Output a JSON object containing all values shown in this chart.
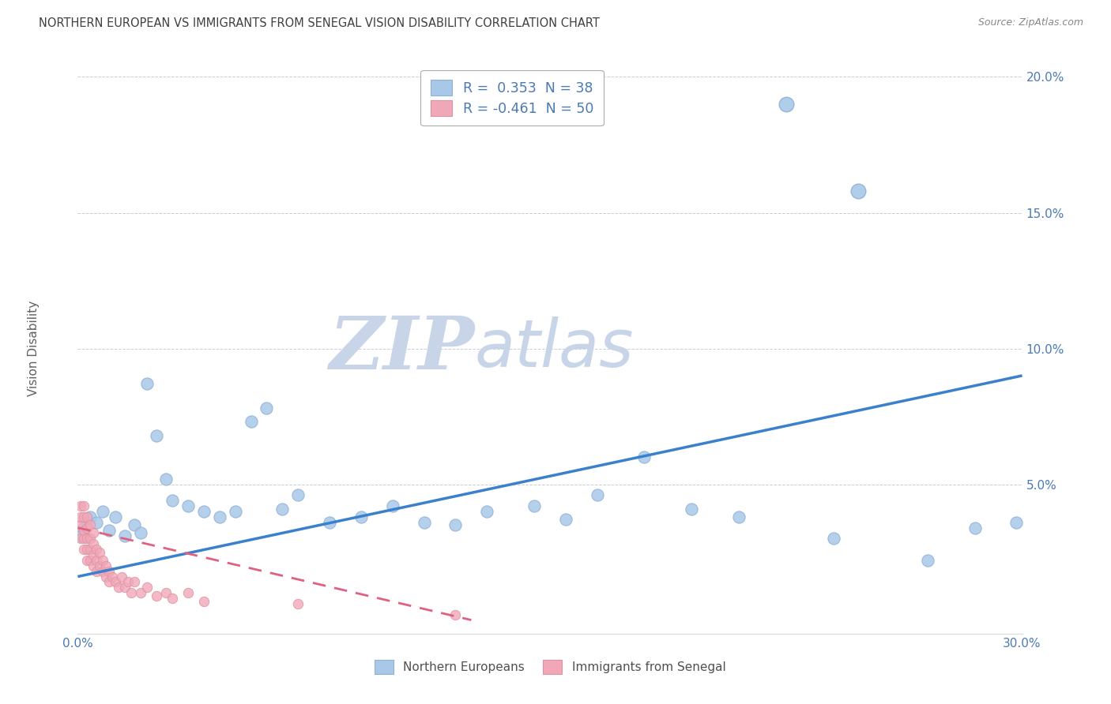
{
  "title": "NORTHERN EUROPEAN VS IMMIGRANTS FROM SENEGAL VISION DISABILITY CORRELATION CHART",
  "source": "Source: ZipAtlas.com",
  "ylabel": "Vision Disability",
  "xlim": [
    0.0,
    0.3
  ],
  "ylim": [
    -0.005,
    0.205
  ],
  "background_color": "#ffffff",
  "grid_color": "#b0b8c8",
  "watermark_zip": "ZIP",
  "watermark_atlas": "atlas",
  "watermark_color_zip": "#c8d4e8",
  "watermark_color_atlas": "#c8d4e8",
  "line_color1": "#3a80cc",
  "line_color2": "#e06080",
  "dot_color1": "#a8c8e8",
  "dot_color2": "#f0a8b8",
  "dot_edge1": "#90b0d8",
  "dot_edge2": "#e090a0",
  "label1": "Northern Europeans",
  "label2": "Immigrants from Senegal",
  "text_color": "#4a7ab5",
  "title_color": "#404040",
  "legend_color1": "#a8c8e8",
  "legend_color2": "#f0a8b8",
  "blue_scatter_x": [
    0.001,
    0.002,
    0.004,
    0.006,
    0.008,
    0.01,
    0.012,
    0.015,
    0.018,
    0.02,
    0.022,
    0.025,
    0.028,
    0.03,
    0.035,
    0.04,
    0.045,
    0.05,
    0.055,
    0.06,
    0.065,
    0.07,
    0.08,
    0.09,
    0.1,
    0.11,
    0.12,
    0.13,
    0.145,
    0.155,
    0.165,
    0.18,
    0.195,
    0.21,
    0.24,
    0.27,
    0.285,
    0.298
  ],
  "blue_scatter_y": [
    0.031,
    0.034,
    0.038,
    0.036,
    0.04,
    0.033,
    0.038,
    0.031,
    0.035,
    0.032,
    0.087,
    0.068,
    0.052,
    0.044,
    0.042,
    0.04,
    0.038,
    0.04,
    0.073,
    0.078,
    0.041,
    0.046,
    0.036,
    0.038,
    0.042,
    0.036,
    0.035,
    0.04,
    0.042,
    0.037,
    0.046,
    0.06,
    0.041,
    0.038,
    0.03,
    0.022,
    0.034,
    0.036
  ],
  "pink_scatter_x": [
    0.001,
    0.001,
    0.001,
    0.001,
    0.002,
    0.002,
    0.002,
    0.002,
    0.002,
    0.003,
    0.003,
    0.003,
    0.003,
    0.003,
    0.004,
    0.004,
    0.004,
    0.004,
    0.005,
    0.005,
    0.005,
    0.005,
    0.006,
    0.006,
    0.006,
    0.007,
    0.007,
    0.008,
    0.008,
    0.009,
    0.009,
    0.01,
    0.01,
    0.011,
    0.012,
    0.013,
    0.014,
    0.015,
    0.016,
    0.017,
    0.018,
    0.02,
    0.022,
    0.025,
    0.028,
    0.03,
    0.035,
    0.04,
    0.07,
    0.12
  ],
  "pink_scatter_y": [
    0.03,
    0.035,
    0.038,
    0.042,
    0.026,
    0.03,
    0.033,
    0.038,
    0.042,
    0.022,
    0.026,
    0.03,
    0.034,
    0.038,
    0.022,
    0.026,
    0.03,
    0.035,
    0.02,
    0.024,
    0.028,
    0.032,
    0.018,
    0.022,
    0.026,
    0.02,
    0.025,
    0.018,
    0.022,
    0.016,
    0.02,
    0.014,
    0.018,
    0.016,
    0.014,
    0.012,
    0.016,
    0.012,
    0.014,
    0.01,
    0.014,
    0.01,
    0.012,
    0.009,
    0.01,
    0.008,
    0.01,
    0.007,
    0.006,
    0.002
  ],
  "special_blue": [
    [
      0.225,
      0.19
    ],
    [
      0.248,
      0.158
    ]
  ],
  "blue_line_x": [
    0.0,
    0.3
  ],
  "blue_line_y": [
    0.016,
    0.09
  ],
  "pink_line_x": [
    0.0,
    0.125
  ],
  "pink_line_y": [
    0.034,
    0.0
  ],
  "figsize": [
    14.06,
    8.92
  ],
  "dpi": 100
}
